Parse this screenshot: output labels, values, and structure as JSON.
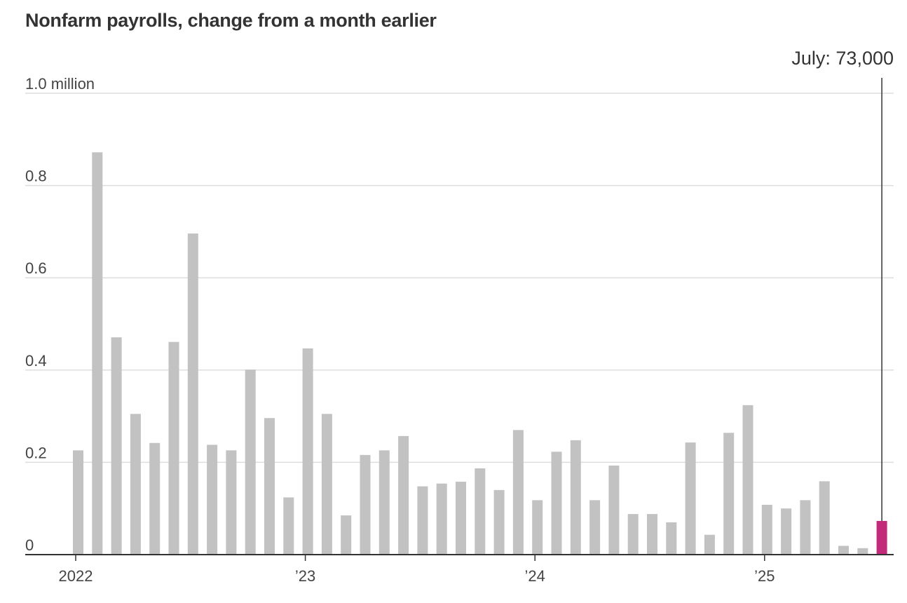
{
  "chart_data": {
    "type": "bar",
    "title": "Nonfarm payrolls, change from a month earlier",
    "x_start": "2022-01",
    "categories": [
      "Jan 2022",
      "Feb 2022",
      "Mar 2022",
      "Apr 2022",
      "May 2022",
      "Jun 2022",
      "Jul 2022",
      "Aug 2022",
      "Sep 2022",
      "Oct 2022",
      "Nov 2022",
      "Dec 2022",
      "Jan 2023",
      "Feb 2023",
      "Mar 2023",
      "Apr 2023",
      "May 2023",
      "Jun 2023",
      "Jul 2023",
      "Aug 2023",
      "Sep 2023",
      "Oct 2023",
      "Nov 2023",
      "Dec 2023",
      "Jan 2024",
      "Feb 2024",
      "Mar 2024",
      "Apr 2024",
      "May 2024",
      "Jun 2024",
      "Jul 2024",
      "Aug 2024",
      "Sep 2024",
      "Oct 2024",
      "Nov 2024",
      "Dec 2024",
      "Jan 2025",
      "Feb 2025",
      "Mar 2025",
      "Apr 2025",
      "May 2025",
      "Jun 2025",
      "Jul 2025"
    ],
    "values": [
      0.226,
      0.872,
      0.471,
      0.305,
      0.242,
      0.461,
      0.696,
      0.238,
      0.226,
      0.401,
      0.296,
      0.124,
      0.447,
      0.305,
      0.085,
      0.216,
      0.226,
      0.257,
      0.148,
      0.154,
      0.158,
      0.187,
      0.14,
      0.27,
      0.118,
      0.223,
      0.248,
      0.118,
      0.193,
      0.088,
      0.088,
      0.07,
      0.243,
      0.043,
      0.264,
      0.324,
      0.108,
      0.1,
      0.118,
      0.159,
      0.019,
      0.014,
      0.073
    ],
    "highlight_index": 42,
    "colors": {
      "bar": "#c2c2c2",
      "highlight": "#c42a7a",
      "grid": "#dddddd",
      "axis": "#333333"
    },
    "ylim": [
      0,
      1.0
    ],
    "yticks": [
      {
        "value": 0,
        "label": "0"
      },
      {
        "value": 0.2,
        "label": "0.2"
      },
      {
        "value": 0.4,
        "label": "0.4"
      },
      {
        "value": 0.6,
        "label": "0.6"
      },
      {
        "value": 0.8,
        "label": "0.8"
      },
      {
        "value": 1.0,
        "label": "1.0 million"
      }
    ],
    "xticks": [
      {
        "index": 0,
        "label": "2022"
      },
      {
        "index": 12,
        "label": "’23"
      },
      {
        "index": 24,
        "label": "’24"
      },
      {
        "index": 36,
        "label": "’25"
      }
    ],
    "annotation": {
      "text": "July: 73,000",
      "index": 42
    },
    "grid": true
  }
}
